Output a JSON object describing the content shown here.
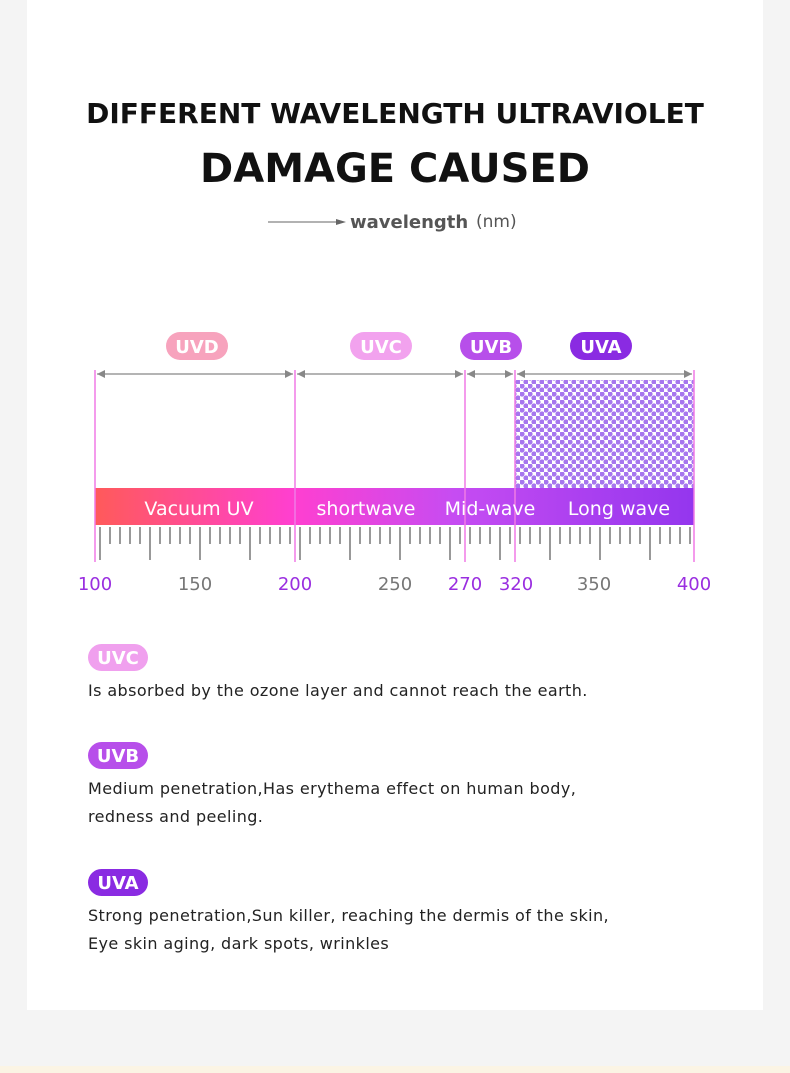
{
  "header": {
    "line1": "DIFFERENT WAVELENGTH ULTRAVIOLET",
    "line2": "DAMAGE CAUSED",
    "axis_label": "wavelength",
    "axis_unit": "(nm)"
  },
  "bands": [
    {
      "tag": "UVD",
      "name": "Vacuum UV"
    },
    {
      "tag": "UVC",
      "name": "shortwave"
    },
    {
      "tag": "UVB",
      "name": "Mid-wave"
    },
    {
      "tag": "UVA",
      "name": "Long wave"
    }
  ],
  "scale": [
    "100",
    "150",
    "200",
    "250",
    "270",
    "320",
    "350",
    "400"
  ],
  "notes": [
    {
      "tag": "UVC",
      "lines": [
        "Is absorbed by the ozone layer and cannot reach the earth."
      ]
    },
    {
      "tag": "UVB",
      "lines": [
        "Medium penetration,Has erythema effect on human body,",
        "redness and peeling."
      ]
    },
    {
      "tag": "UVA",
      "lines": [
        "Strong penetration,Sun killer, reaching the dermis of the skin,",
        "Eye skin aging, dark spots, wrinkles"
      ]
    }
  ]
}
